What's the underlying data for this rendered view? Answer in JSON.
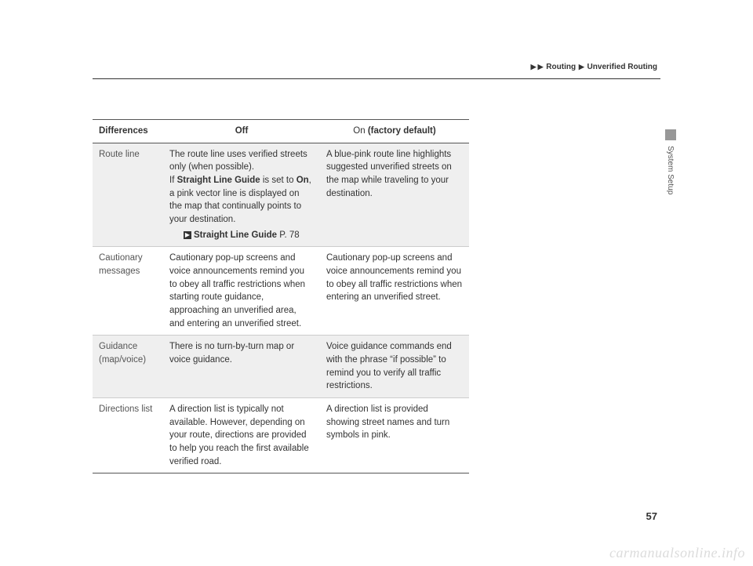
{
  "breadcrumb": {
    "sep": "▶",
    "item1": "Routing",
    "item2": "Unverified Routing"
  },
  "sideTab": "System Setup",
  "pageNumber": "57",
  "watermark": "carmanualsonline.info",
  "table": {
    "headers": {
      "col1": "Differences",
      "col2": "Off",
      "col3_on": "On",
      "col3_default": " (factory default)"
    },
    "rows": {
      "r1": {
        "label": "Route line",
        "off_p1a": "The route line uses verified streets only (when possible).",
        "off_p1b": "If ",
        "off_p1c": "Straight Line Guide",
        "off_p1d": " is set to ",
        "off_p1e": "On",
        "off_p1f": ", a pink vector line is displayed on the map that continually points to your destination.",
        "xref_label": "Straight Line Guide",
        "xref_page": " P. 78",
        "on": "A blue-pink route line highlights suggested unverified streets on the map while traveling to your destination."
      },
      "r2": {
        "label": "Cautionary messages",
        "off": "Cautionary pop-up screens and voice announcements remind you to obey all traffic restrictions when starting route guidance, approaching an unverified area, and entering an unverified street.",
        "on": "Cautionary pop-up screens and voice announcements remind you to obey all traffic restrictions when entering an unverified street."
      },
      "r3": {
        "label": "Guidance (map/voice)",
        "off": "There is no turn-by-turn map or voice guidance.",
        "on": "Voice guidance commands end with the phrase “if possible” to remind you to verify all traffic restrictions."
      },
      "r4": {
        "label": "Directions list",
        "off": "A direction list is typically not available. However, depending on your route, directions are provided to help you reach the first available verified road.",
        "on": "A direction list is provided showing street names and turn symbols in pink."
      }
    }
  }
}
